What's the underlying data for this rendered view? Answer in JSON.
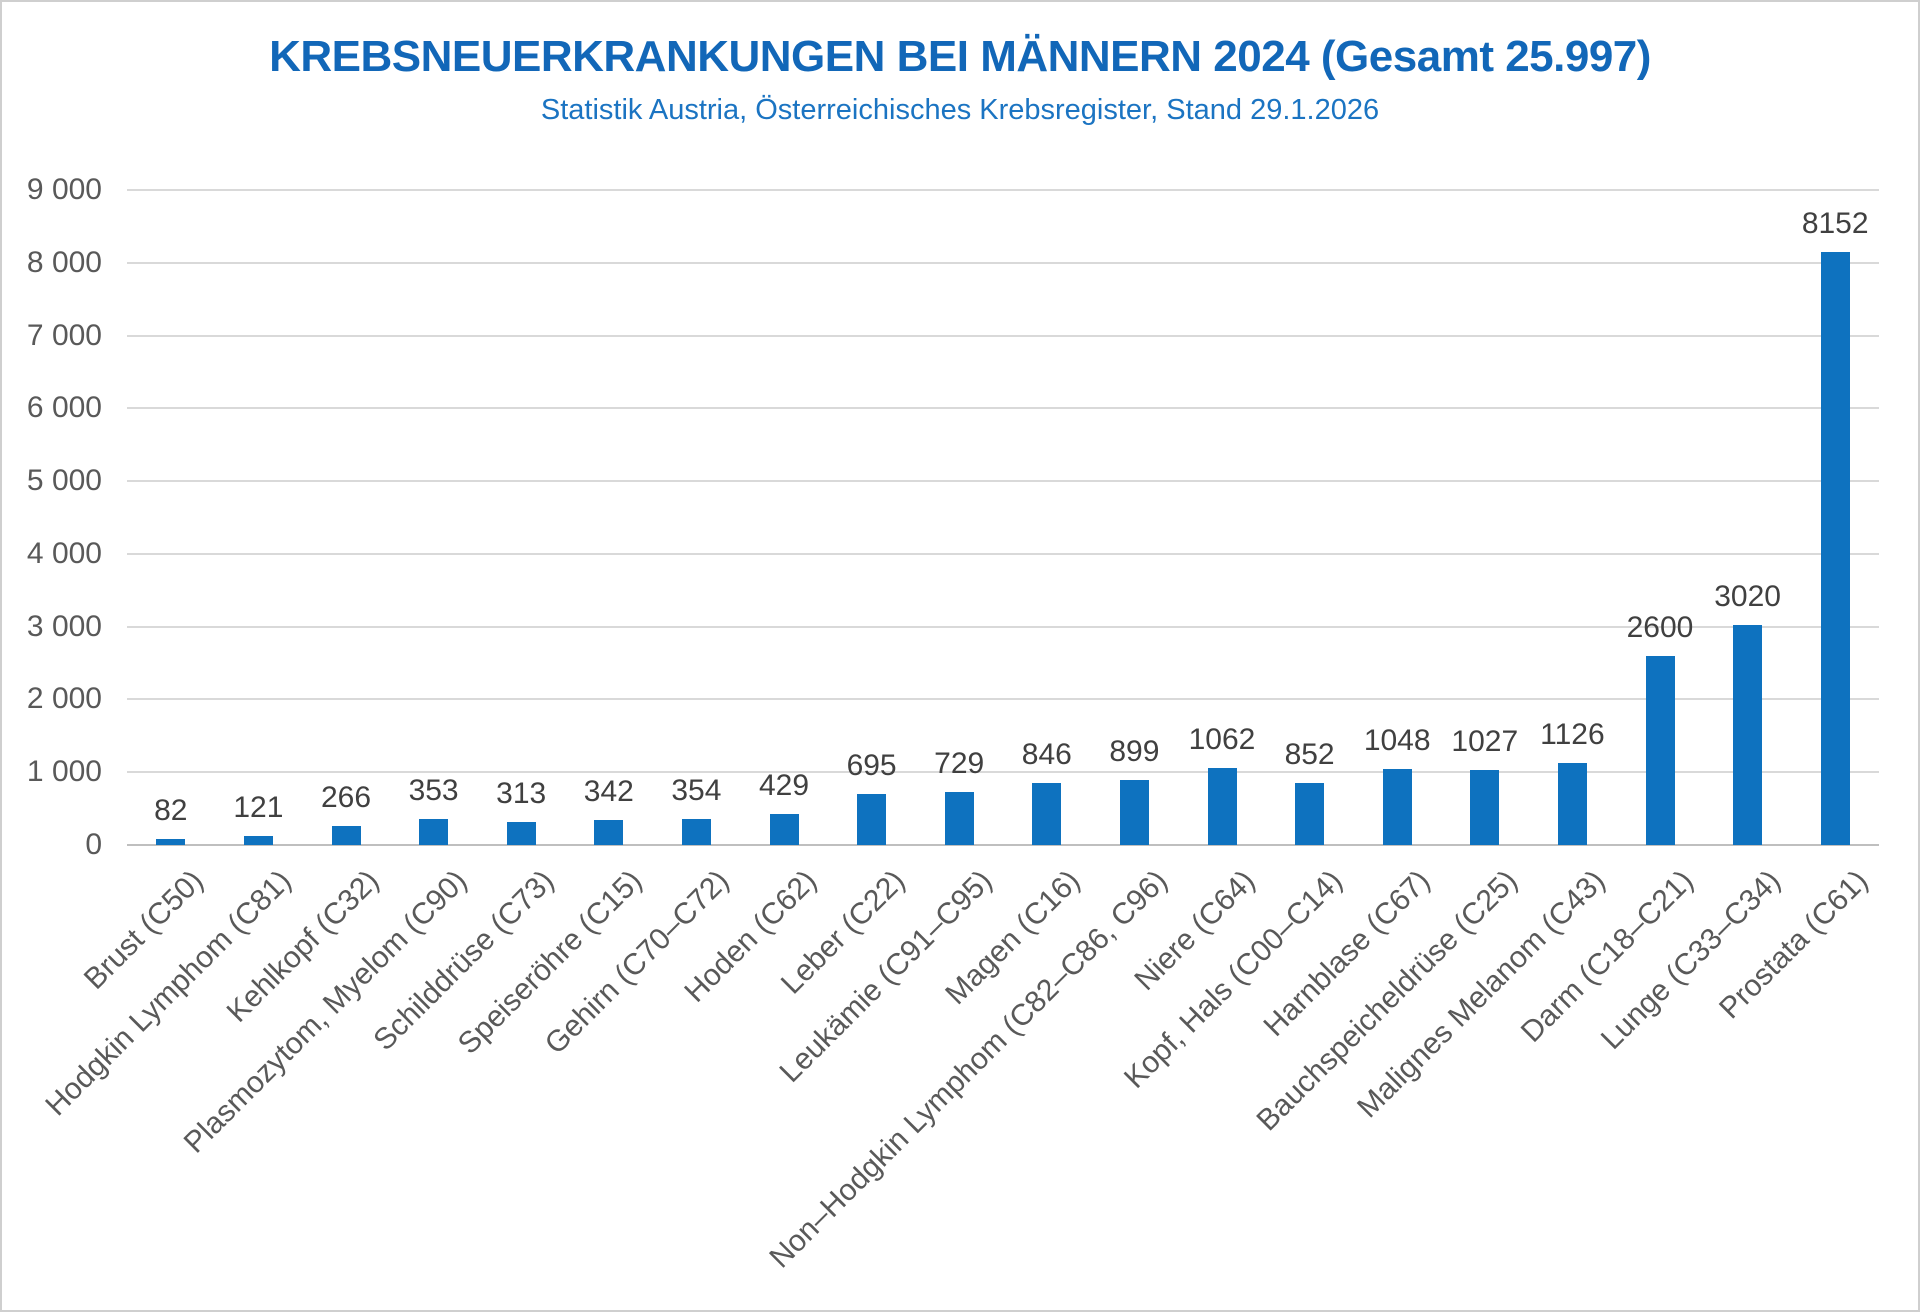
{
  "header": {
    "title": "KREBSNEUERKRANKUNGEN BEI MÄNNERN 2024 (Gesamt 25.997)",
    "subtitle": "Statistik Austria, Österreichisches Krebsregister, Stand 29.1.2026"
  },
  "colors": {
    "bar": "#0e72bf",
    "title": "#1267b8",
    "subtitle": "#1b74c2",
    "gridline": "#d9d9d9",
    "axis_line": "#bfbfbf",
    "tick_text": "#595959",
    "value_text": "#404040"
  },
  "chart_data": {
    "type": "bar",
    "title": "KREBSNEUERKRANKUNGEN BEI MÄNNERN 2024 (Gesamt 25.997)",
    "subtitle": "Statistik Austria, Österreichisches Krebsregister, Stand 29.1.2026",
    "xlabel": "",
    "ylabel": "",
    "ylim": [
      0,
      9000
    ],
    "yticks": [
      0,
      1000,
      2000,
      3000,
      4000,
      5000,
      6000,
      7000,
      8000,
      9000
    ],
    "grid": true,
    "legend": false,
    "categories": [
      "Brust (C50)",
      "Hodgkin Lymphom (C81)",
      "Kehlkopf (C32)",
      "Plasmozytom, Myelom (C90)",
      "Schilddrüse (C73)",
      "Speiseröhre (C15)",
      "Gehirn (C70–C72)",
      "Hoden (C62)",
      "Leber (C22)",
      "Leukämie (C91–C95)",
      "Magen (C16)",
      "Non–Hodgkin Lymphom (C82–C86, C96)",
      "Niere (C64)",
      "Kopf, Hals (C00–C14)",
      "Harnblase (C67)",
      "Bauchspeicheldrüse (C25)",
      "Malignes Melanom (C43)",
      "Darm (C18–C21)",
      "Lunge (C33–C34)",
      "Prostata (C61)"
    ],
    "values": [
      82,
      121,
      266,
      353,
      313,
      342,
      354,
      429,
      695,
      729,
      846,
      899,
      1062,
      852,
      1048,
      1027,
      1126,
      2600,
      3020,
      8152
    ]
  }
}
